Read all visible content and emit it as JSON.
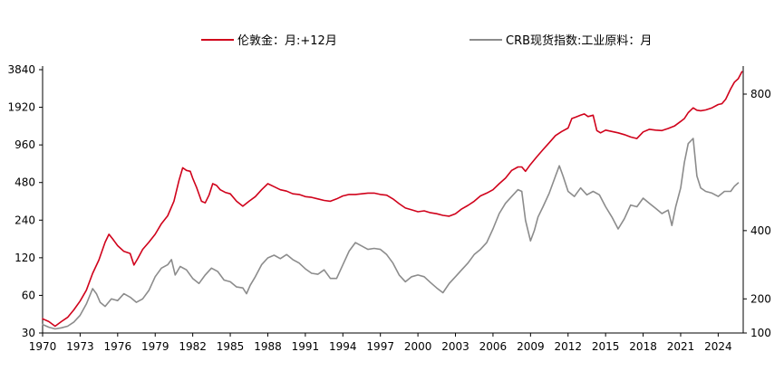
{
  "chart_data": {
    "type": "line",
    "legend_position": "top",
    "grid": false,
    "x_axis": {
      "type": "time",
      "range": [
        1970,
        2026
      ],
      "tick_labels": [
        "1970",
        "1973",
        "1976",
        "1979",
        "1982",
        "1985",
        "1988",
        "1991",
        "1994",
        "1997",
        "2000",
        "2003",
        "2006",
        "2009",
        "2012",
        "2015",
        "2018",
        "2021",
        "2024"
      ]
    },
    "y_axis_left": {
      "scale": "log",
      "range": [
        30,
        4400
      ],
      "ticks": [
        30,
        60,
        120,
        240,
        480,
        960,
        1920,
        3840
      ],
      "tick_labels": [
        "30",
        "60",
        "120",
        "240",
        "480",
        "960",
        "1920",
        "3840"
      ]
    },
    "y_axis_right": {
      "scale": "linear",
      "range": [
        100,
        870
      ],
      "ticks": [
        100,
        200,
        400,
        800
      ],
      "tick_labels": [
        "100",
        "200",
        "400",
        "800"
      ]
    },
    "series": [
      {
        "name": "伦敦金：月:+12月",
        "axis": "left",
        "color": "#d0021b",
        "points": [
          [
            1970.0,
            39
          ],
          [
            1970.5,
            37
          ],
          [
            1971.0,
            34
          ],
          [
            1971.5,
            37
          ],
          [
            1972.0,
            40
          ],
          [
            1972.5,
            46
          ],
          [
            1973.0,
            54
          ],
          [
            1973.5,
            66
          ],
          [
            1974.0,
            90
          ],
          [
            1974.5,
            115
          ],
          [
            1975.0,
            160
          ],
          [
            1975.3,
            185
          ],
          [
            1975.6,
            170
          ],
          [
            1976.0,
            150
          ],
          [
            1976.5,
            135
          ],
          [
            1977.0,
            130
          ],
          [
            1977.3,
            105
          ],
          [
            1977.6,
            118
          ],
          [
            1978.0,
            140
          ],
          [
            1978.5,
            160
          ],
          [
            1979.0,
            185
          ],
          [
            1979.5,
            225
          ],
          [
            1980.0,
            260
          ],
          [
            1980.5,
            340
          ],
          [
            1980.9,
            500
          ],
          [
            1981.2,
            630
          ],
          [
            1981.5,
            600
          ],
          [
            1981.8,
            590
          ],
          [
            1982.0,
            520
          ],
          [
            1982.3,
            440
          ],
          [
            1982.7,
            340
          ],
          [
            1983.0,
            330
          ],
          [
            1983.3,
            380
          ],
          [
            1983.6,
            470
          ],
          [
            1983.9,
            455
          ],
          [
            1984.2,
            420
          ],
          [
            1984.6,
            400
          ],
          [
            1985.0,
            390
          ],
          [
            1985.5,
            340
          ],
          [
            1986.0,
            310
          ],
          [
            1986.5,
            340
          ],
          [
            1987.0,
            370
          ],
          [
            1987.5,
            420
          ],
          [
            1988.0,
            470
          ],
          [
            1988.5,
            445
          ],
          [
            1989.0,
            420
          ],
          [
            1989.5,
            410
          ],
          [
            1990.0,
            390
          ],
          [
            1990.5,
            385
          ],
          [
            1991.0,
            370
          ],
          [
            1991.5,
            365
          ],
          [
            1992.0,
            355
          ],
          [
            1992.5,
            345
          ],
          [
            1993.0,
            340
          ],
          [
            1993.5,
            355
          ],
          [
            1994.0,
            375
          ],
          [
            1994.5,
            385
          ],
          [
            1995.0,
            385
          ],
          [
            1995.5,
            390
          ],
          [
            1996.0,
            395
          ],
          [
            1996.5,
            395
          ],
          [
            1997.0,
            385
          ],
          [
            1997.5,
            380
          ],
          [
            1998.0,
            355
          ],
          [
            1998.5,
            325
          ],
          [
            1999.0,
            300
          ],
          [
            1999.5,
            290
          ],
          [
            2000.0,
            280
          ],
          [
            2000.5,
            285
          ],
          [
            2001.0,
            275
          ],
          [
            2001.5,
            270
          ],
          [
            2002.0,
            262
          ],
          [
            2002.5,
            258
          ],
          [
            2003.0,
            270
          ],
          [
            2003.5,
            295
          ],
          [
            2004.0,
            315
          ],
          [
            2004.5,
            340
          ],
          [
            2005.0,
            375
          ],
          [
            2005.5,
            395
          ],
          [
            2006.0,
            420
          ],
          [
            2006.5,
            470
          ],
          [
            2007.0,
            520
          ],
          [
            2007.5,
            600
          ],
          [
            2008.0,
            640
          ],
          [
            2008.3,
            640
          ],
          [
            2008.6,
            590
          ],
          [
            2009.0,
            670
          ],
          [
            2009.5,
            770
          ],
          [
            2010.0,
            880
          ],
          [
            2010.5,
            1000
          ],
          [
            2011.0,
            1140
          ],
          [
            2011.5,
            1230
          ],
          [
            2012.0,
            1310
          ],
          [
            2012.3,
            1560
          ],
          [
            2012.6,
            1600
          ],
          [
            2013.0,
            1660
          ],
          [
            2013.3,
            1700
          ],
          [
            2013.6,
            1620
          ],
          [
            2014.0,
            1660
          ],
          [
            2014.3,
            1250
          ],
          [
            2014.6,
            1200
          ],
          [
            2015.0,
            1260
          ],
          [
            2015.5,
            1230
          ],
          [
            2016.0,
            1200
          ],
          [
            2016.5,
            1160
          ],
          [
            2017.0,
            1110
          ],
          [
            2017.5,
            1080
          ],
          [
            2018.0,
            1220
          ],
          [
            2018.5,
            1280
          ],
          [
            2019.0,
            1260
          ],
          [
            2019.5,
            1250
          ],
          [
            2020.0,
            1300
          ],
          [
            2020.5,
            1360
          ],
          [
            2021.0,
            1480
          ],
          [
            2021.3,
            1560
          ],
          [
            2021.6,
            1740
          ],
          [
            2022.0,
            1900
          ],
          [
            2022.3,
            1820
          ],
          [
            2022.6,
            1800
          ],
          [
            2023.0,
            1830
          ],
          [
            2023.5,
            1900
          ],
          [
            2024.0,
            2020
          ],
          [
            2024.3,
            2050
          ],
          [
            2024.6,
            2230
          ],
          [
            2025.0,
            2700
          ],
          [
            2025.3,
            3050
          ],
          [
            2025.6,
            3250
          ],
          [
            2025.9,
            3700
          ]
        ]
      },
      {
        "name": "CRB现货指数:工业原料：月",
        "axis": "right",
        "color": "#8c8c8c",
        "points": [
          [
            1970.0,
            125
          ],
          [
            1970.5,
            117
          ],
          [
            1971.0,
            112
          ],
          [
            1971.5,
            115
          ],
          [
            1972.0,
            120
          ],
          [
            1972.5,
            132
          ],
          [
            1973.0,
            152
          ],
          [
            1973.5,
            185
          ],
          [
            1974.0,
            230
          ],
          [
            1974.3,
            215
          ],
          [
            1974.6,
            190
          ],
          [
            1975.0,
            178
          ],
          [
            1975.5,
            200
          ],
          [
            1976.0,
            195
          ],
          [
            1976.5,
            215
          ],
          [
            1977.0,
            205
          ],
          [
            1977.5,
            190
          ],
          [
            1978.0,
            200
          ],
          [
            1978.5,
            225
          ],
          [
            1979.0,
            265
          ],
          [
            1979.5,
            290
          ],
          [
            1980.0,
            300
          ],
          [
            1980.3,
            315
          ],
          [
            1980.6,
            270
          ],
          [
            1981.0,
            295
          ],
          [
            1981.5,
            285
          ],
          [
            1982.0,
            260
          ],
          [
            1982.5,
            245
          ],
          [
            1983.0,
            270
          ],
          [
            1983.5,
            290
          ],
          [
            1984.0,
            280
          ],
          [
            1984.5,
            255
          ],
          [
            1985.0,
            250
          ],
          [
            1985.5,
            235
          ],
          [
            1986.0,
            232
          ],
          [
            1986.3,
            215
          ],
          [
            1986.6,
            240
          ],
          [
            1987.0,
            265
          ],
          [
            1987.5,
            300
          ],
          [
            1988.0,
            320
          ],
          [
            1988.5,
            328
          ],
          [
            1989.0,
            318
          ],
          [
            1989.5,
            330
          ],
          [
            1990.0,
            315
          ],
          [
            1990.5,
            305
          ],
          [
            1991.0,
            288
          ],
          [
            1991.5,
            275
          ],
          [
            1992.0,
            272
          ],
          [
            1992.5,
            285
          ],
          [
            1993.0,
            260
          ],
          [
            1993.5,
            260
          ],
          [
            1994.0,
            300
          ],
          [
            1994.5,
            340
          ],
          [
            1995.0,
            365
          ],
          [
            1995.5,
            355
          ],
          [
            1996.0,
            345
          ],
          [
            1996.5,
            348
          ],
          [
            1997.0,
            345
          ],
          [
            1997.5,
            330
          ],
          [
            1998.0,
            305
          ],
          [
            1998.5,
            270
          ],
          [
            1999.0,
            250
          ],
          [
            1999.5,
            265
          ],
          [
            2000.0,
            270
          ],
          [
            2000.5,
            265
          ],
          [
            2001.0,
            248
          ],
          [
            2001.5,
            232
          ],
          [
            2002.0,
            218
          ],
          [
            2002.5,
            245
          ],
          [
            2003.0,
            265
          ],
          [
            2003.5,
            285
          ],
          [
            2004.0,
            305
          ],
          [
            2004.5,
            330
          ],
          [
            2005.0,
            345
          ],
          [
            2005.5,
            365
          ],
          [
            2006.0,
            405
          ],
          [
            2006.5,
            450
          ],
          [
            2007.0,
            480
          ],
          [
            2007.5,
            500
          ],
          [
            2008.0,
            520
          ],
          [
            2008.3,
            515
          ],
          [
            2008.6,
            430
          ],
          [
            2009.0,
            370
          ],
          [
            2009.3,
            400
          ],
          [
            2009.6,
            440
          ],
          [
            2010.0,
            470
          ],
          [
            2010.5,
            510
          ],
          [
            2011.0,
            560
          ],
          [
            2011.3,
            590
          ],
          [
            2011.6,
            560
          ],
          [
            2012.0,
            515
          ],
          [
            2012.5,
            500
          ],
          [
            2013.0,
            525
          ],
          [
            2013.5,
            505
          ],
          [
            2014.0,
            515
          ],
          [
            2014.5,
            505
          ],
          [
            2015.0,
            470
          ],
          [
            2015.5,
            440
          ],
          [
            2016.0,
            405
          ],
          [
            2016.5,
            435
          ],
          [
            2017.0,
            475
          ],
          [
            2017.5,
            470
          ],
          [
            2018.0,
            495
          ],
          [
            2018.5,
            480
          ],
          [
            2019.0,
            465
          ],
          [
            2019.5,
            450
          ],
          [
            2020.0,
            460
          ],
          [
            2020.3,
            415
          ],
          [
            2020.6,
            470
          ],
          [
            2021.0,
            525
          ],
          [
            2021.3,
            600
          ],
          [
            2021.6,
            655
          ],
          [
            2022.0,
            670
          ],
          [
            2022.3,
            560
          ],
          [
            2022.6,
            525
          ],
          [
            2023.0,
            515
          ],
          [
            2023.5,
            510
          ],
          [
            2024.0,
            500
          ],
          [
            2024.5,
            515
          ],
          [
            2025.0,
            515
          ],
          [
            2025.3,
            530
          ],
          [
            2025.6,
            540
          ]
        ]
      }
    ]
  }
}
